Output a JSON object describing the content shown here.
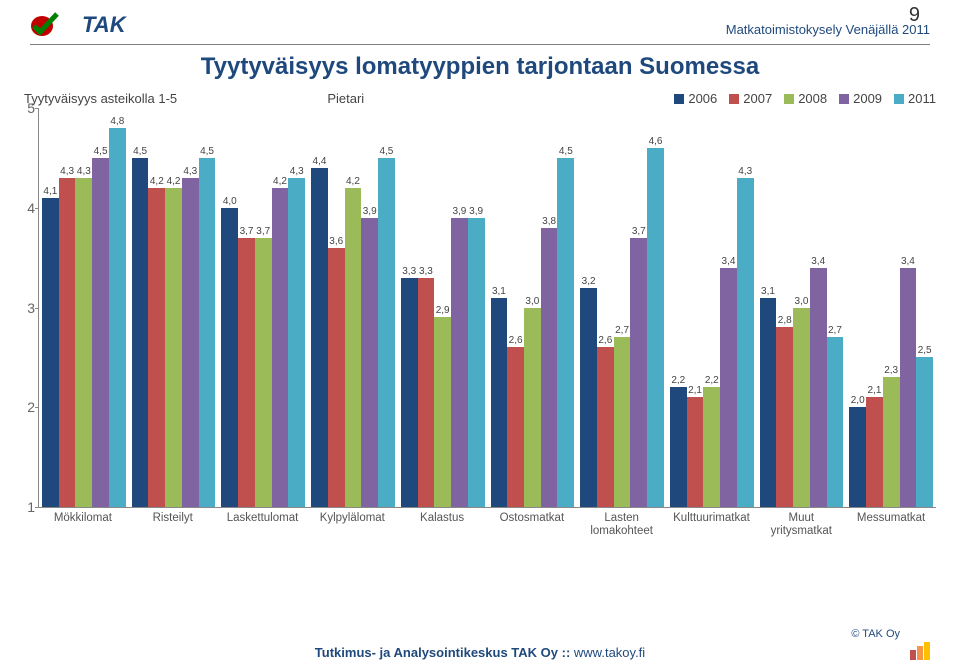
{
  "page_number": "9",
  "doc_title": "Matkatoimistokysely Venäjällä 2011",
  "logo_text": "TAK",
  "chart": {
    "title": "Tyytyväisyys lomatyyppien tarjontaan Suomessa",
    "y_axis_label": "Tyytyväisyys asteikolla 1-5",
    "center_label": "Pietari",
    "type": "bar",
    "ylim": [
      1,
      5
    ],
    "yticks": [
      1,
      2,
      3,
      4,
      5
    ],
    "series_years": [
      "2006",
      "2007",
      "2008",
      "2009",
      "2011"
    ],
    "series_colors": [
      "#1f497d",
      "#c0504d",
      "#9bbb59",
      "#8064a2",
      "#4bacc6"
    ],
    "categories": [
      "Mökkilomat",
      "Risteilyt",
      "Laskettulomat",
      "Kylpylälomat",
      "Kalastus",
      "Ostosmatkat",
      "Lasten lomakohteet",
      "Kulttuurimatkat",
      "Muut yritysmatkat",
      "Messumatkat"
    ],
    "data": [
      [
        4.1,
        4.3,
        4.3,
        4.5,
        4.8
      ],
      [
        4.5,
        4.2,
        4.2,
        4.3,
        4.5
      ],
      [
        4.0,
        3.7,
        3.7,
        4.2,
        4.3
      ],
      [
        4.4,
        3.6,
        4.2,
        3.9,
        4.5
      ],
      [
        3.3,
        3.3,
        2.9,
        3.9,
        3.9
      ],
      [
        3.1,
        2.6,
        3.0,
        3.8,
        4.5
      ],
      [
        3.2,
        2.6,
        2.7,
        3.7,
        4.6
      ],
      [
        2.2,
        2.1,
        2.2,
        3.4,
        4.3
      ],
      [
        3.1,
        2.8,
        3.0,
        3.4,
        2.7
      ],
      [
        2.0,
        2.1,
        2.3,
        3.4,
        2.5
      ]
    ],
    "background_color": "#ffffff",
    "axis_color": "#888888",
    "label_color": "#555555",
    "title_color": "#1f497d",
    "title_fontsize": 24,
    "label_fontsize": 12,
    "bar_label_fontsize": 10
  },
  "footer": {
    "org": "Tutkimus- ja Analysointikeskus TAK Oy",
    "sep": " :: ",
    "url": "www.takoy.fi",
    "copyright": "© TAK Oy",
    "mini_colors": [
      "#c0504d",
      "#f79646",
      "#ffc000"
    ],
    "mini_heights": [
      10,
      14,
      18
    ]
  },
  "logo_colors": {
    "red": "#c00000",
    "green": "#008000",
    "text": "#1f497d"
  }
}
